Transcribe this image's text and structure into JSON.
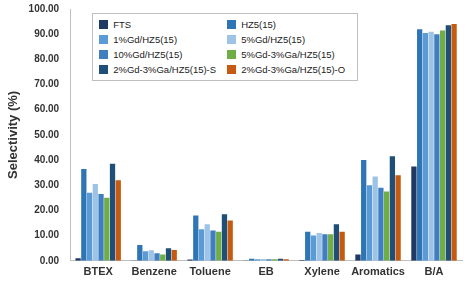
{
  "chart_data": {
    "type": "bar",
    "y_label": "Selectivity (%)",
    "categories": [
      "BTEX",
      "Benzene",
      "Toluene",
      "EB",
      "Xylene",
      "Aromatics",
      "B/A"
    ],
    "series": [
      {
        "name": "FTS",
        "color": "#1f3864",
        "values": [
          1,
          0.1,
          0.5,
          0.1,
          0.3,
          2.5,
          37.5
        ]
      },
      {
        "name": "HZ5(15)",
        "color": "#2e75b6",
        "values": [
          36.5,
          6.3,
          18,
          0.8,
          11.5,
          40,
          92
        ]
      },
      {
        "name": "1%Gd/HZ5(15)",
        "color": "#5b9bd5",
        "values": [
          27,
          3.8,
          12.5,
          0.6,
          10,
          30,
          90.5
        ]
      },
      {
        "name": "5%Gd/HZ5(15)",
        "color": "#9dc3e6",
        "values": [
          30.5,
          4.2,
          14.5,
          0.7,
          11,
          33.5,
          91
        ]
      },
      {
        "name": "10%Gd/HZ5(15)",
        "color": "#3f7fbf",
        "values": [
          26.5,
          3,
          12,
          0.6,
          10.5,
          29,
          90
        ]
      },
      {
        "name": "5%Gd-3%Ga/HZ5(15)",
        "color": "#70ad47",
        "values": [
          25,
          2.5,
          11.5,
          0.6,
          10.5,
          27.5,
          91.5
        ]
      },
      {
        "name": "2%Gd-3%Ga/HZ5(15)-S",
        "color": "#1f4e79",
        "values": [
          38.5,
          5,
          18.5,
          0.8,
          14.5,
          41.5,
          93.5
        ]
      },
      {
        "name": "2%Gd-3%Ga/HZ5(15)-O",
        "color": "#c55a11",
        "values": [
          32,
          4.3,
          16,
          0.6,
          11.5,
          34,
          94
        ]
      }
    ],
    "ylim": [
      0,
      100
    ],
    "yticks": [
      {
        "value": 0,
        "label": "0.00"
      },
      {
        "value": 10,
        "label": "10.00"
      },
      {
        "value": 20,
        "label": "20.00"
      },
      {
        "value": 30,
        "label": "30.00"
      },
      {
        "value": 40,
        "label": "40.00"
      },
      {
        "value": 50,
        "label": "50.00"
      },
      {
        "value": 60,
        "label": "60.00"
      },
      {
        "value": 70,
        "label": "70.00"
      },
      {
        "value": 80,
        "label": "80.00"
      },
      {
        "value": 90,
        "label": "90.00"
      },
      {
        "value": 100,
        "label": "100.00"
      }
    ],
    "grid": false,
    "legend": "upper left"
  }
}
